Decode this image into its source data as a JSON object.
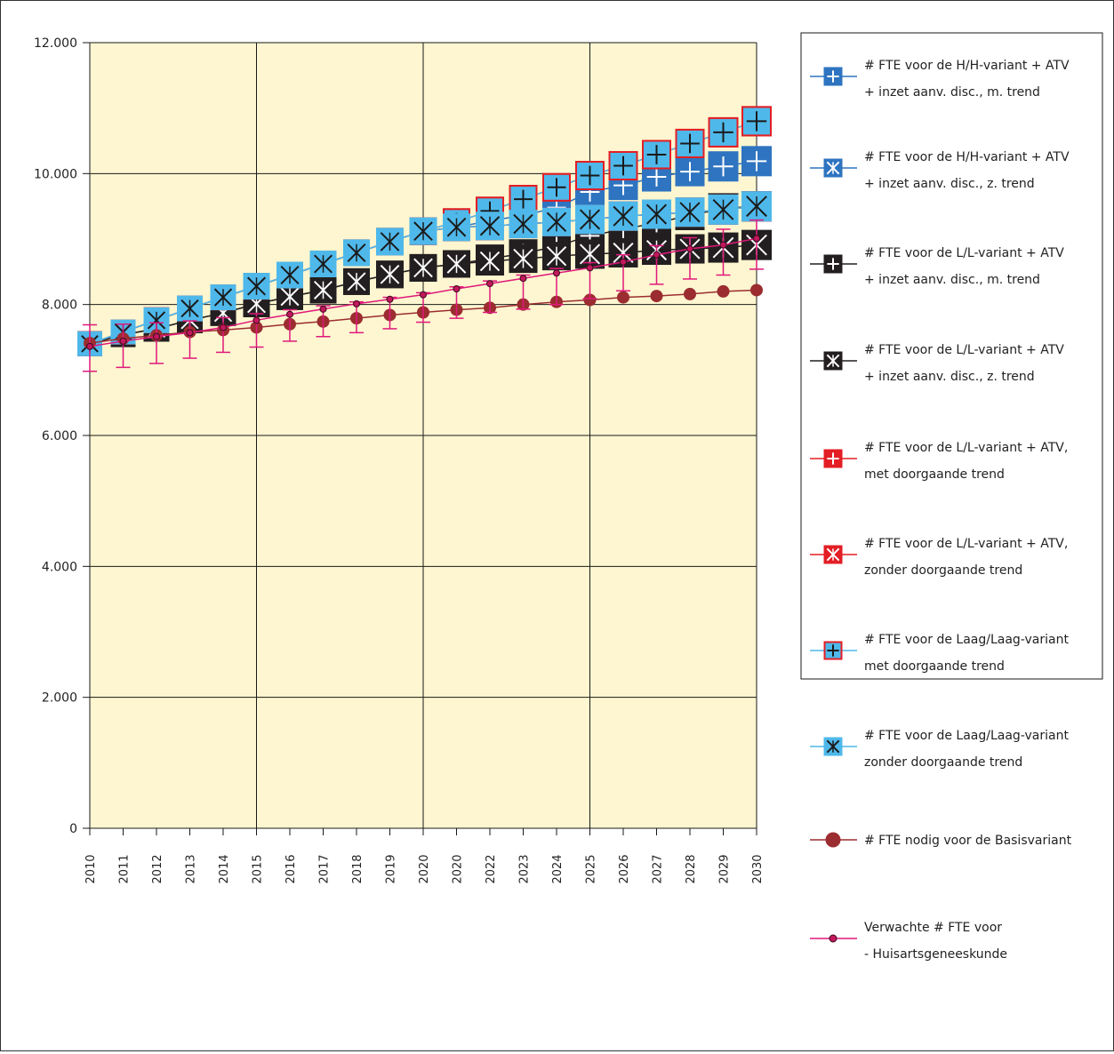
{
  "chart_data": {
    "type": "line",
    "x": [
      "2010",
      "2011",
      "2012",
      "2013",
      "2014",
      "2015",
      "2016",
      "2017",
      "2018",
      "2019",
      "2020",
      "2020",
      "2022",
      "2023",
      "2024",
      "2025",
      "2026",
      "2027",
      "2028",
      "2029",
      "2030"
    ],
    "ylim": [
      0,
      12000
    ],
    "yticks": [
      0,
      2000,
      4000,
      6000,
      8000,
      10000,
      12000
    ],
    "ytick_labels": [
      "0",
      "2.000",
      "4.000",
      "6.000",
      "8.000",
      "10.000",
      "12.000"
    ],
    "grid": true,
    "plot_background": "#fdf6d0",
    "legend_position": "right",
    "series": [
      {
        "name_lines": [
          "# FTE voor de H/H-variant + ATV",
          "+ inzet aanv. disc., m. trend"
        ],
        "marker": "square-plus",
        "fill": "#2f74c0",
        "border": "#2f74c0",
        "line": "#2f74c0",
        "glyph": "#ffffff",
        "values": [
          7400,
          7580,
          7760,
          7940,
          8110,
          8280,
          8450,
          8620,
          8790,
          8960,
          9120,
          9180,
          9280,
          9360,
          9480,
          9720,
          9820,
          9950,
          10030,
          10110,
          10190
        ]
      },
      {
        "name_lines": [
          "# FTE voor de H/H-variant + ATV",
          "+ inzet aanv. disc., z. trend"
        ],
        "marker": "square-x",
        "fill": "#2f74c0",
        "border": "#2f74c0",
        "line": "#2f74c0",
        "glyph": "#ffffff",
        "values": [
          7400,
          7580,
          7760,
          7940,
          8110,
          8280,
          8450,
          8620,
          8790,
          8960,
          9120,
          9180,
          9200,
          9230,
          9260,
          9300,
          9350,
          9380,
          9410,
          9450,
          9500
        ]
      },
      {
        "name_lines": [
          "# FTE voor de L/L-variant + ATV",
          "+ inzet aanv. disc., m. trend"
        ],
        "marker": "square-plus",
        "fill": "#231f20",
        "border": "#231f20",
        "line": "#231f20",
        "glyph": "#ffffff",
        "values": [
          7400,
          7540,
          7630,
          7760,
          7870,
          8010,
          8120,
          8220,
          8350,
          8460,
          8560,
          8620,
          8700,
          8780,
          8890,
          9050,
          9150,
          9250,
          9360,
          9470,
          9500
        ]
      },
      {
        "name_lines": [
          "# FTE voor de L/L-variant + ATV",
          "+ inzet aanv. disc., z. trend"
        ],
        "marker": "square-x",
        "fill": "#231f20",
        "border": "#231f20",
        "line": "#231f20",
        "glyph": "#ffffff",
        "values": [
          7400,
          7540,
          7630,
          7760,
          7870,
          8010,
          8120,
          8220,
          8350,
          8460,
          8560,
          8620,
          8660,
          8700,
          8740,
          8770,
          8790,
          8830,
          8850,
          8870,
          8910
        ]
      },
      {
        "name_lines": [
          "# FTE voor de L/L-variant + ATV,",
          "met doorgaande trend"
        ],
        "marker": "square-plus",
        "fill": "#e31e24",
        "border": "#e31e24",
        "line": "#e31e24",
        "glyph": "#ffffff",
        "values": [
          7400,
          7580,
          7760,
          7940,
          8110,
          8280,
          8450,
          8620,
          8790,
          8960,
          9120,
          9260,
          9430,
          9610,
          9790,
          9970,
          10120,
          10290,
          10460,
          10630,
          10800
        ]
      },
      {
        "name_lines": [
          "# FTE voor de L/L-variant + ATV,",
          "zonder doorgaande trend"
        ],
        "marker": "square-x",
        "fill": "#e31e24",
        "border": "#e31e24",
        "line": "#e31e24",
        "glyph": "#ffffff",
        "values": [
          7400,
          7580,
          7760,
          7940,
          8110,
          8280,
          8450,
          8620,
          8790,
          8960,
          9120,
          9180,
          9200,
          9230,
          9260,
          9300,
          9350,
          9380,
          9410,
          9450,
          9500
        ]
      },
      {
        "name_lines": [
          "# FTE voor de Laag/Laag-variant",
          "met doorgaande trend"
        ],
        "marker": "square-plus",
        "fill": "#4fb8ea",
        "border": "#e31e24",
        "line": "#4fb8ea",
        "glyph": "#1a1a1a",
        "values": [
          7400,
          7580,
          7760,
          7940,
          8110,
          8280,
          8450,
          8620,
          8790,
          8960,
          9120,
          9260,
          9430,
          9610,
          9790,
          9970,
          10120,
          10290,
          10460,
          10630,
          10800
        ]
      },
      {
        "name_lines": [
          "# FTE voor de Laag/Laag-variant",
          "zonder doorgaande trend"
        ],
        "marker": "square-x",
        "fill": "#4fb8ea",
        "border": "#4fb8ea",
        "line": "#4fb8ea",
        "glyph": "#1a1a1a",
        "values": [
          7400,
          7580,
          7760,
          7940,
          8110,
          8280,
          8450,
          8620,
          8790,
          8960,
          9120,
          9180,
          9200,
          9230,
          9260,
          9300,
          9350,
          9380,
          9410,
          9450,
          9500
        ]
      },
      {
        "name_lines": [
          "# FTE nodig voor de Basisvariant"
        ],
        "marker": "circle-large",
        "fill": "#9b2d30",
        "border": "#9b2d30",
        "line": "#9b2d30",
        "values": [
          7410,
          7480,
          7530,
          7580,
          7610,
          7650,
          7700,
          7740,
          7790,
          7840,
          7880,
          7920,
          7950,
          8000,
          8040,
          8070,
          8110,
          8130,
          8160,
          8200,
          8220
        ]
      },
      {
        "name_lines": [
          "Verwachte # FTE voor",
          "- Huisartsgeneeskunde"
        ],
        "marker": "circle-small",
        "fill": "#c2185b",
        "border": "#3a0a1e",
        "line": "#e0187b",
        "values": [
          7360,
          7440,
          7510,
          7570,
          7650,
          7760,
          7850,
          7930,
          8010,
          8080,
          8150,
          8240,
          8320,
          8400,
          8480,
          8560,
          8650,
          8760,
          8850,
          8910,
          9010
        ],
        "error_low": [
          6980,
          7040,
          7100,
          7180,
          7270,
          7350,
          7440,
          7510,
          7570,
          7630,
          7730,
          7790,
          7880,
          7930,
          8000,
          8090,
          8210,
          8310,
          8390,
          8450,
          8540
        ],
        "error_high": [
          7690,
          7700,
          7720,
          7750,
          7800,
          7860,
          7920,
          7980,
          8040,
          8110,
          8180,
          8270,
          8360,
          8450,
          8550,
          8640,
          8760,
          8900,
          9020,
          9150,
          9290
        ],
        "error_color": "#e0187b"
      }
    ]
  }
}
